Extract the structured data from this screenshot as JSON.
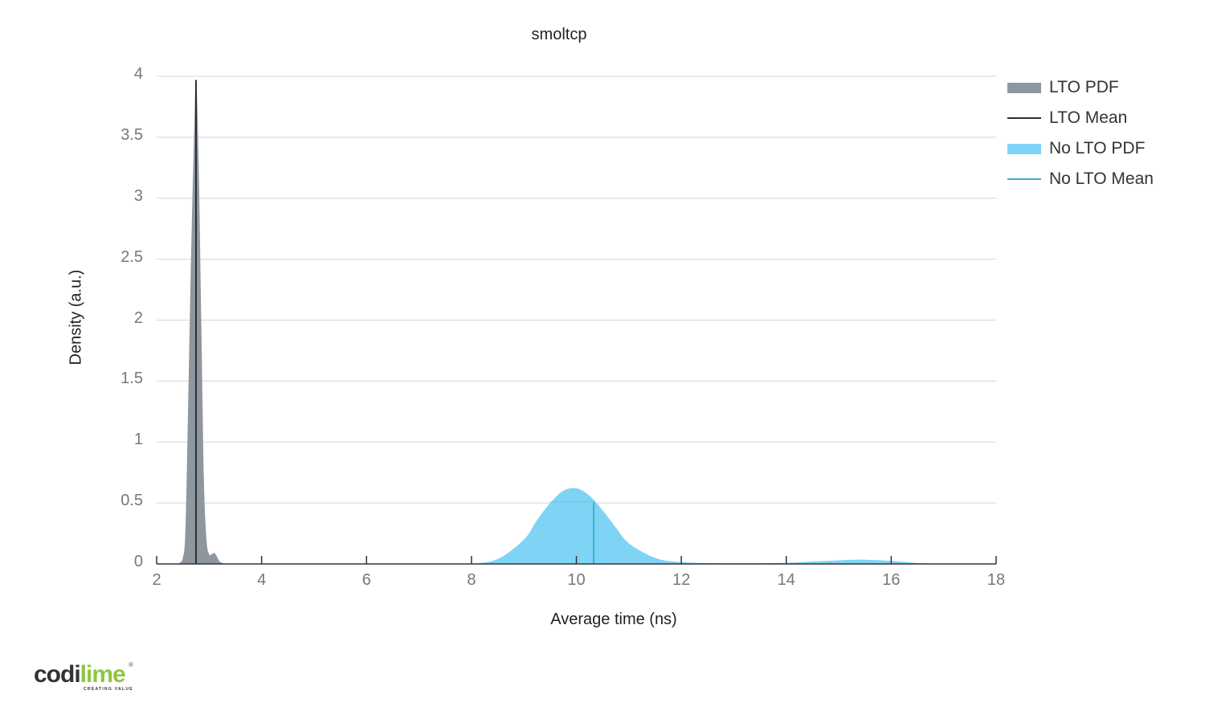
{
  "chart_data": {
    "type": "area",
    "title": "smoltcp",
    "xlabel": "Average time (ns)",
    "ylabel": "Density (a.u.)",
    "xlim": [
      2,
      18
    ],
    "ylim": [
      0,
      4
    ],
    "xticks": [
      "2",
      "4",
      "6",
      "8",
      "10",
      "12",
      "14",
      "16",
      "18"
    ],
    "yticks": [
      "0",
      "0.5",
      "1",
      "1.5",
      "2",
      "2.5",
      "3",
      "3.5",
      "4"
    ],
    "grid": "horizontal",
    "legend_position": "right",
    "series": [
      {
        "name": "LTO PDF",
        "kind": "density",
        "color": "#8e969e",
        "x": [
          2.4,
          2.5,
          2.55,
          2.6,
          2.65,
          2.7,
          2.75,
          2.8,
          2.85,
          2.9,
          2.95,
          3.0,
          3.05,
          3.1,
          3.15,
          3.2,
          3.3
        ],
        "y": [
          0.0,
          0.05,
          0.3,
          1.3,
          2.4,
          3.3,
          3.97,
          3.3,
          2.0,
          0.7,
          0.2,
          0.08,
          0.08,
          0.09,
          0.06,
          0.02,
          0.0
        ]
      },
      {
        "name": "LTO Mean",
        "kind": "mean",
        "color": "#2b2f33",
        "x": 2.75,
        "y": 3.97
      },
      {
        "name": "No LTO PDF",
        "kind": "density",
        "color": "#7fd4f5",
        "x": [
          8.0,
          8.5,
          9.0,
          9.25,
          9.5,
          9.75,
          10.0,
          10.25,
          10.5,
          10.75,
          11.0,
          11.5,
          12.0,
          13.0,
          14.0,
          14.5,
          15.0,
          15.5,
          16.0,
          16.5,
          17.0
        ],
        "y": [
          0.0,
          0.04,
          0.2,
          0.36,
          0.5,
          0.6,
          0.62,
          0.56,
          0.44,
          0.3,
          0.17,
          0.05,
          0.015,
          0.005,
          0.01,
          0.02,
          0.03,
          0.035,
          0.025,
          0.008,
          0.0
        ]
      },
      {
        "name": "No LTO Mean",
        "kind": "mean",
        "color": "#3fa9d6",
        "x": 10.33,
        "y": 0.51
      }
    ]
  },
  "legend": {
    "items": [
      {
        "label": "LTO PDF",
        "kind": "box",
        "color": "#8e969e"
      },
      {
        "label": "LTO Mean",
        "kind": "line",
        "color": "#2b2f33"
      },
      {
        "label": "No LTO PDF",
        "kind": "box",
        "color": "#7fd4f5"
      },
      {
        "label": "No LTO Mean",
        "kind": "line",
        "color": "#3fa9d6"
      }
    ]
  },
  "logo": {
    "brand_dark": "codi",
    "brand_accent": "lime",
    "tagline": "CREATING VALUE",
    "registered": "®"
  }
}
